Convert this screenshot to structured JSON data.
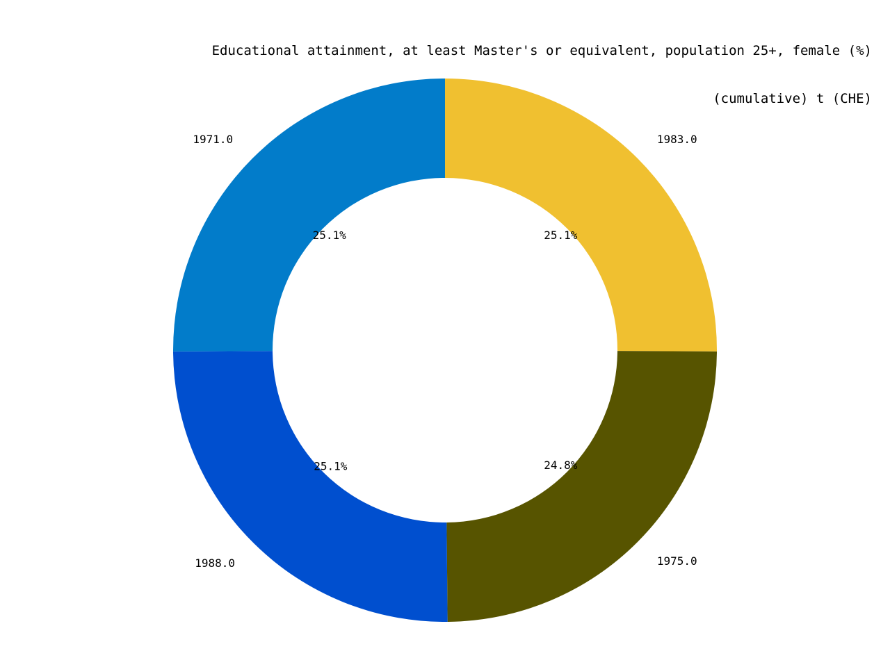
{
  "chart_data": {
    "type": "pie",
    "variant": "donut",
    "title_lines": [
      "Educational attainment, at least Master's or equivalent, population 25+, female (%)",
      "(cumulative) t (CHE)"
    ],
    "start_angle_deg": 90,
    "direction": "clockwise",
    "slices": [
      {
        "label": "1983.0",
        "pct_text": "25.1%",
        "value": 25.1,
        "color": "#f0c030"
      },
      {
        "label": "1975.0",
        "pct_text": "24.8%",
        "value": 24.8,
        "color": "#575400"
      },
      {
        "label": "1988.0",
        "pct_text": "25.1%",
        "value": 25.1,
        "color": "#004fcf"
      },
      {
        "label": "1971.0",
        "pct_text": "25.1%",
        "value": 25.1,
        "color": "#027cca"
      }
    ],
    "legend": "none"
  }
}
